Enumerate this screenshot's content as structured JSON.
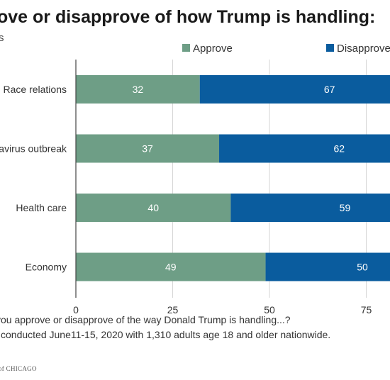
{
  "chart_data": {
    "type": "bar",
    "orientation": "horizontal",
    "stacked": true,
    "title": "ove or disapprove of how Trump is handling:",
    "subtitle": "s",
    "categories": [
      "Race relations",
      "avirus outbreak",
      "Health care",
      "Economy"
    ],
    "series": [
      {
        "name": "Approve",
        "color": "#6e9e86",
        "values": [
          32,
          37,
          40,
          49
        ]
      },
      {
        "name": "Disapprove",
        "color": "#0a5c9e",
        "values": [
          67,
          62,
          59,
          50
        ]
      }
    ],
    "xlim": [
      0,
      100
    ],
    "xticks": [
      0,
      25,
      50,
      75
    ],
    "grid": true,
    "legend_position": "top-right"
  },
  "footnotes": [
    "you approve or disapprove of the way Donald Trump is handling...?",
    "l conducted June11-15, 2020 with 1,310 adults age 18 and older nationwide."
  ],
  "logo_text": "of CHICAGO"
}
